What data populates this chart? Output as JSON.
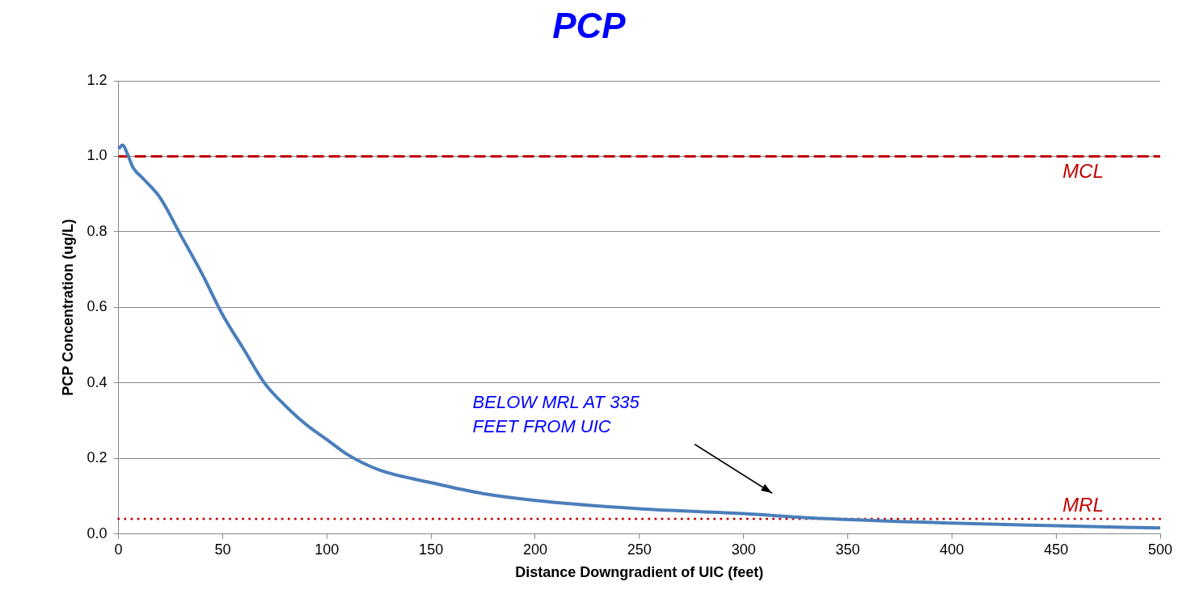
{
  "chart_data": {
    "type": "line",
    "title": "PCP",
    "xlabel": "Distance Downgradient of UIC (feet)",
    "ylabel": "PCP Concentration (ug/L)",
    "series": [
      {
        "color": "#4a7ebb",
        "x": [
          0,
          2,
          4,
          7,
          12,
          20,
          30,
          40,
          50,
          60,
          70,
          80,
          90,
          100,
          110,
          125,
          150,
          175,
          200,
          250,
          300,
          335,
          400,
          450,
          500
        ],
        "values": [
          1.02,
          1.03,
          1.01,
          0.97,
          0.94,
          0.89,
          0.79,
          0.69,
          0.58,
          0.49,
          0.4,
          0.34,
          0.29,
          0.25,
          0.21,
          0.17,
          0.136,
          0.107,
          0.089,
          0.067,
          0.054,
          0.042,
          0.029,
          0.022,
          0.016
        ]
      }
    ],
    "xlim": [
      0,
      500
    ],
    "xticks": [
      0,
      50,
      100,
      150,
      200,
      250,
      300,
      350,
      400,
      450,
      500
    ],
    "ylim": [
      0,
      1.2
    ],
    "yticks": [
      {
        "value": 0,
        "label": "0.0"
      },
      {
        "value": 0.2,
        "label": "0.2"
      },
      {
        "value": 0.4,
        "label": "0.4"
      },
      {
        "value": 0.6,
        "label": "0.6"
      },
      {
        "value": 0.8,
        "label": "0.8"
      },
      {
        "value": 1,
        "label": "1.0"
      },
      {
        "value": 1.2,
        "label": "1.2"
      }
    ],
    "grid": "y",
    "legend": false,
    "marker": "none",
    "line_style": "solid",
    "ref_lines": [
      {
        "axis": "y",
        "value": 1,
        "label": "MCL",
        "color": "#c00000",
        "line_style": "dashed"
      },
      {
        "axis": "y",
        "value": 0.04,
        "label": "MRL",
        "color": "#c00000",
        "line_style": "dotted"
      }
    ],
    "annotations": [
      "BELOW MRL AT 335\nFEET FROM UIC"
    ]
  }
}
